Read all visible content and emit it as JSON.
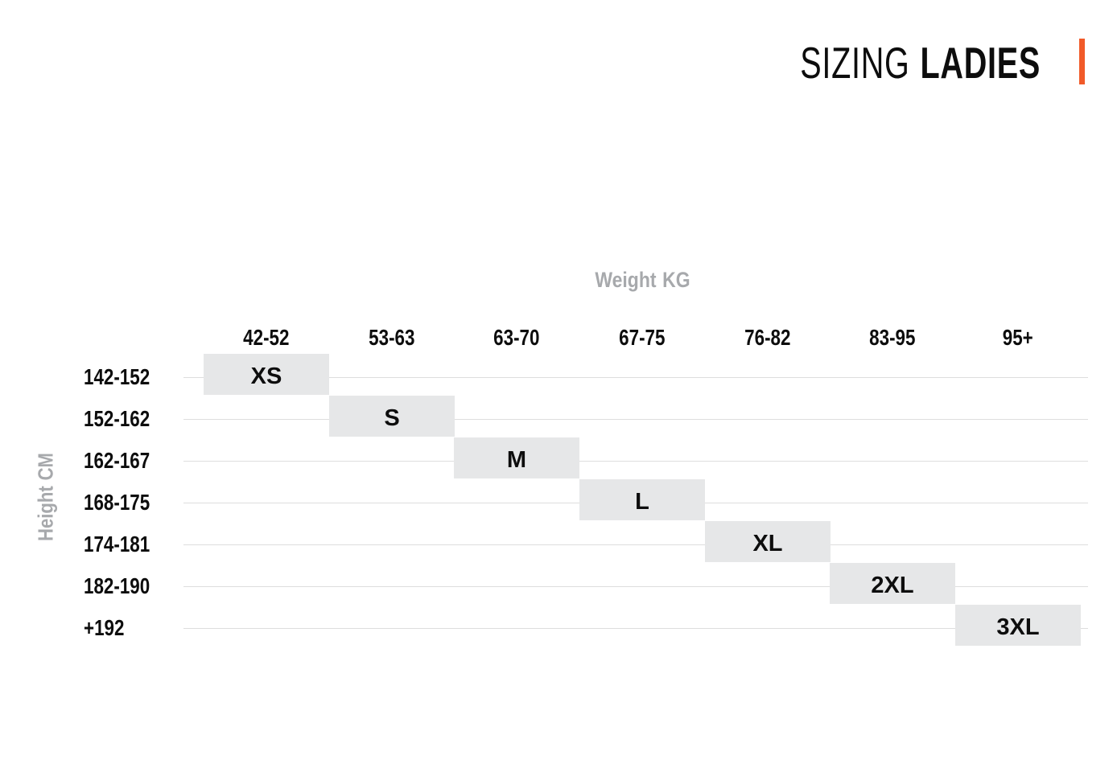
{
  "header": {
    "title_regular": "SIZING",
    "title_bold": "LADIES",
    "accent_color": "#F15A29"
  },
  "chart_data": {
    "type": "table",
    "title": "SIZING LADIES",
    "x_axis": {
      "label": "Weight",
      "unit": "KG",
      "categories": [
        "42-52",
        "53-63",
        "63-70",
        "67-75",
        "76-82",
        "83-95",
        "95+"
      ]
    },
    "y_axis": {
      "label": "Height",
      "unit": "CM",
      "categories": [
        "142-152",
        "152-162",
        "162-167",
        "168-175",
        "174-181",
        "182-190",
        "+192"
      ]
    },
    "rows": [
      {
        "height_cm": "142-152",
        "weight_kg": "42-52",
        "size": "XS"
      },
      {
        "height_cm": "152-162",
        "weight_kg": "53-63",
        "size": "S"
      },
      {
        "height_cm": "162-167",
        "weight_kg": "63-70",
        "size": "M"
      },
      {
        "height_cm": "168-175",
        "weight_kg": "67-75",
        "size": "L"
      },
      {
        "height_cm": "174-181",
        "weight_kg": "76-82",
        "size": "XL"
      },
      {
        "height_cm": "182-190",
        "weight_kg": "83-95",
        "size": "2XL"
      },
      {
        "height_cm": "+192",
        "weight_kg": "95+",
        "size": "3XL"
      }
    ],
    "layout": {
      "grid": "horizontal-lines",
      "cell_fill": "#E6E7E8",
      "grid_line_color": "#DEDEDE",
      "axis_label_color": "#A7A9AC",
      "text_color": "#0d0d0d",
      "size_cells_arrangement": "diagonal"
    }
  }
}
